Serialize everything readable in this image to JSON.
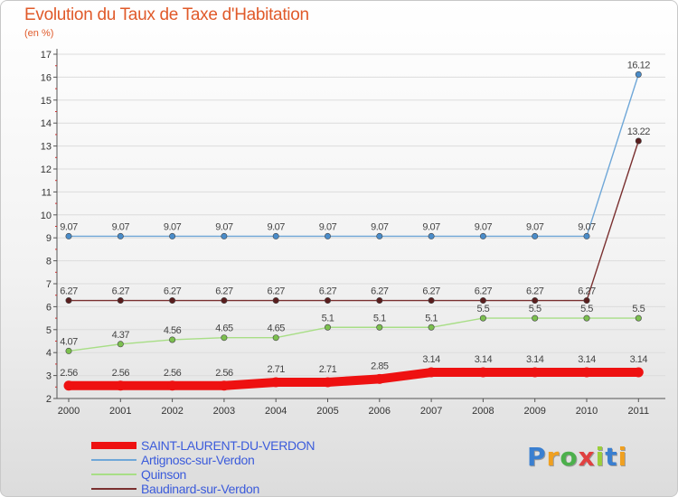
{
  "chart_data": {
    "type": "line",
    "title": "Evolution du Taux de Taxe d'Habitation",
    "subtitle": "(en %)",
    "xlabel": "",
    "ylabel": "",
    "ylim": [
      2,
      17
    ],
    "yticks": [
      2,
      3,
      4,
      5,
      6,
      7,
      8,
      9,
      10,
      11,
      12,
      13,
      14,
      15,
      16,
      17
    ],
    "categories": [
      "2000",
      "2001",
      "2002",
      "2003",
      "2004",
      "2005",
      "2006",
      "2007",
      "2008",
      "2009",
      "2010",
      "2011"
    ],
    "series": [
      {
        "name": "SAINT-LAURENT-DU-VERDON",
        "color": "#ee1111",
        "values": [
          2.56,
          2.56,
          2.56,
          2.56,
          2.71,
          2.71,
          2.85,
          3.14,
          3.14,
          3.14,
          3.14,
          3.14
        ],
        "labels": [
          "2.56",
          "2.56",
          "2.56",
          "2.56",
          "2.71",
          "2.71",
          "2.85",
          "3.14",
          "3.14",
          "3.14",
          "3.14",
          "3.14"
        ]
      },
      {
        "name": "Artignosc-sur-Verdon",
        "color": "#6fa7d8",
        "marker": "#4a8cc9",
        "values": [
          9.07,
          9.07,
          9.07,
          9.07,
          9.07,
          9.07,
          9.07,
          9.07,
          9.07,
          9.07,
          9.07,
          16.12
        ],
        "labels": [
          "9.07",
          "9.07",
          "9.07",
          "9.07",
          "9.07",
          "9.07",
          "9.07",
          "9.07",
          "9.07",
          "9.07",
          "9.07",
          "16.12"
        ]
      },
      {
        "name": "Quinson",
        "color": "#a8de86",
        "marker": "#7cc04f",
        "values": [
          4.07,
          4.37,
          4.56,
          4.65,
          4.65,
          5.1,
          5.1,
          5.1,
          5.5,
          5.5,
          5.5,
          5.5
        ],
        "labels": [
          "4.07",
          "4.37",
          "4.56",
          "4.65",
          "4.65",
          "5.1",
          "5.1",
          "5.1",
          "5.5",
          "5.5",
          "5.5",
          "5.5"
        ]
      },
      {
        "name": "Baudinard-sur-Verdon",
        "color": "#7a3030",
        "marker": "#5a1e1e",
        "values": [
          6.27,
          6.27,
          6.27,
          6.27,
          6.27,
          6.27,
          6.27,
          6.27,
          6.27,
          6.27,
          6.27,
          13.22
        ],
        "labels": [
          "6.27",
          "6.27",
          "6.27",
          "6.27",
          "6.27",
          "6.27",
          "6.27",
          "6.27",
          "6.27",
          "6.27",
          "6.27",
          "13.22"
        ]
      }
    ]
  },
  "logo": {
    "letters": [
      "P",
      "r",
      "o",
      "x",
      "i",
      "t",
      "i"
    ],
    "colors": [
      "#3a7fd0",
      "#f0a020",
      "#4cb04c",
      "#e04040",
      "#9bcf3a",
      "#3a7fd0",
      "#f0a020"
    ]
  }
}
